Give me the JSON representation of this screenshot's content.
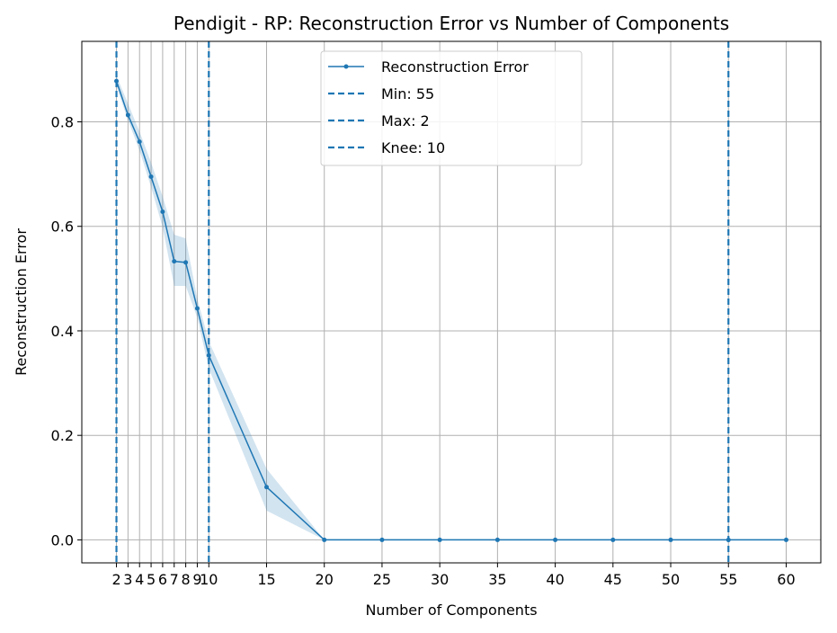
{
  "chart_data": {
    "type": "line",
    "title": "Pendigit - RP: Reconstruction Error vs Number of Components",
    "xlabel": "Number of Components",
    "ylabel": "Reconstruction Error",
    "xlim": [
      -1,
      63
    ],
    "ylim": [
      -0.044,
      0.954
    ],
    "x_ticks": [
      2,
      3,
      4,
      5,
      6,
      7,
      8,
      9,
      10,
      15,
      20,
      25,
      30,
      35,
      40,
      45,
      50,
      55,
      60
    ],
    "y_ticks": [
      0.0,
      0.2,
      0.4,
      0.6,
      0.8
    ],
    "y_tick_labels": [
      "0.0",
      "0.2",
      "0.4",
      "0.6",
      "0.8"
    ],
    "grid": true,
    "legend_position": "top-center",
    "series": [
      {
        "name": "Reconstruction Error",
        "color": "#1f77b4",
        "x": [
          2,
          3,
          4,
          5,
          6,
          7,
          8,
          9,
          10,
          15,
          20,
          25,
          30,
          35,
          40,
          45,
          50,
          55,
          60
        ],
        "values": [
          0.878,
          0.813,
          0.762,
          0.695,
          0.628,
          0.533,
          0.531,
          0.443,
          0.353,
          0.101,
          0.0,
          0.0,
          0.0,
          0.0,
          0.0,
          0.0,
          0.0,
          0.0,
          0.0
        ],
        "band_lower": [
          0.868,
          0.803,
          0.745,
          0.675,
          0.598,
          0.486,
          0.486,
          0.425,
          0.328,
          0.056,
          0.0,
          0.0,
          0.0,
          0.0,
          0.0,
          0.0,
          0.0,
          0.0,
          0.0
        ],
        "band_upper": [
          0.888,
          0.835,
          0.781,
          0.722,
          0.657,
          0.584,
          0.577,
          0.462,
          0.38,
          0.136,
          0.0,
          0.0,
          0.0,
          0.0,
          0.0,
          0.0,
          0.0,
          0.0,
          0.0
        ]
      }
    ],
    "vlines": [
      {
        "label": "Min: 55",
        "x": 55,
        "color": "#1f77b4"
      },
      {
        "label": "Max: 2",
        "x": 2,
        "color": "#1f77b4"
      },
      {
        "label": "Knee: 10",
        "x": 10,
        "color": "#1f77b4"
      }
    ]
  }
}
